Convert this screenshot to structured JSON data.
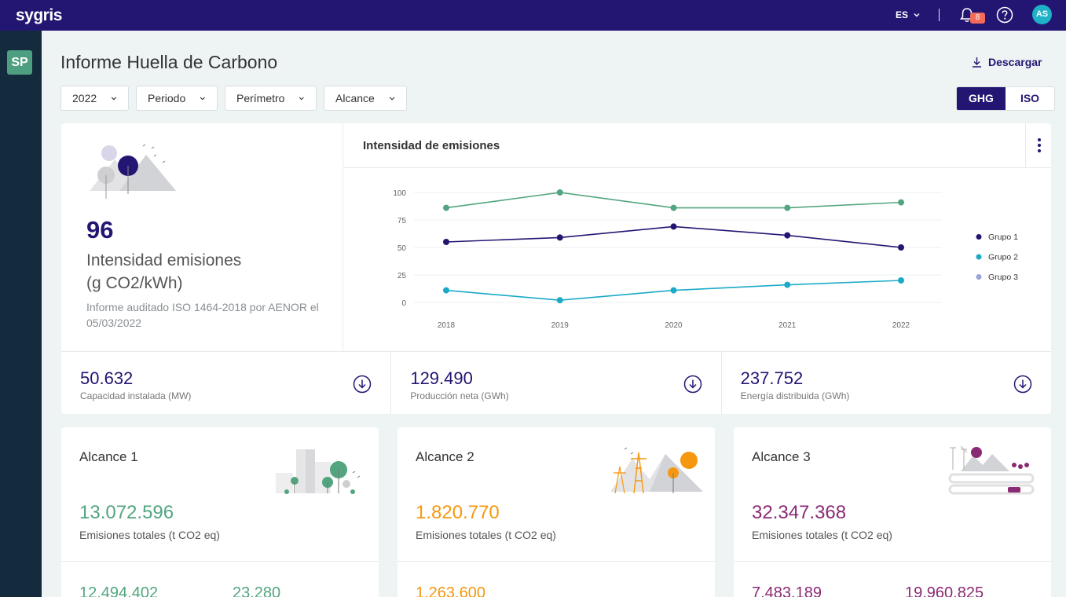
{
  "app": {
    "logo": "sygris",
    "language": "ES",
    "notifications": "8",
    "user_initials": "AS",
    "workspace_badge": "SP"
  },
  "header": {
    "title": "Informe Huella de Carbono",
    "download_label": "Descargar"
  },
  "filters": [
    {
      "label": "2022"
    },
    {
      "label": "Periodo"
    },
    {
      "label": "Perímetro"
    },
    {
      "label": "Alcance"
    }
  ],
  "standard_toggle": {
    "options": [
      "GHG",
      "ISO"
    ],
    "selected": "GHG"
  },
  "intensity_kpi": {
    "value": "96",
    "label_line1": "Intensidad emisiones",
    "label_line2": "(g CO2/kWh)",
    "note": "Informe auditado ISO 1464-2018 por AENOR el 05/03/2022"
  },
  "chart_data": {
    "type": "line",
    "title": "Intensidad de emisiones",
    "categories": [
      "2018",
      "2019",
      "2020",
      "2021",
      "2022"
    ],
    "y_ticks": [
      "100",
      "75",
      "50",
      "25",
      "0"
    ],
    "ylim": [
      0,
      100
    ],
    "series": [
      {
        "name": "Grupo 1",
        "color": "#231673",
        "values": [
          55,
          59,
          69,
          61,
          50
        ],
        "in_legend": true
      },
      {
        "name": "Grupo 2",
        "color": "#1aaac8",
        "values": [
          11,
          2,
          11,
          16,
          20
        ],
        "in_legend": true
      },
      {
        "name": "Grupo 3",
        "color": "#52a57f",
        "legend_color": "#9aa3d6",
        "values": [
          86,
          100,
          86,
          86,
          91
        ],
        "in_legend": true
      }
    ],
    "legend_position": "right"
  },
  "kpis": [
    {
      "value": "50.632",
      "label": "Capacidad instalada (MW)"
    },
    {
      "value": "129.490",
      "label": "Producción neta (GWh)"
    },
    {
      "value": "237.752",
      "label": "Energía distribuida (GWh)"
    }
  ],
  "alcances": [
    {
      "title": "Alcance 1",
      "total": "13.072.596",
      "subtitle": "Emisiones totales (t CO2 eq)",
      "color": "#52a57f",
      "v1": "12.494.402",
      "v2": "23.280"
    },
    {
      "title": "Alcance 2",
      "total": "1.820.770",
      "subtitle": "Emisiones totales (t CO2 eq)",
      "color": "#f6980f",
      "v1": "1.263.600",
      "v2": ""
    },
    {
      "title": "Alcance 3",
      "total": "32.347.368",
      "subtitle": "Emisiones totales (t CO2 eq)",
      "color": "#8b2a74",
      "v1": "7.483.189",
      "v2": "19.960.825"
    }
  ]
}
